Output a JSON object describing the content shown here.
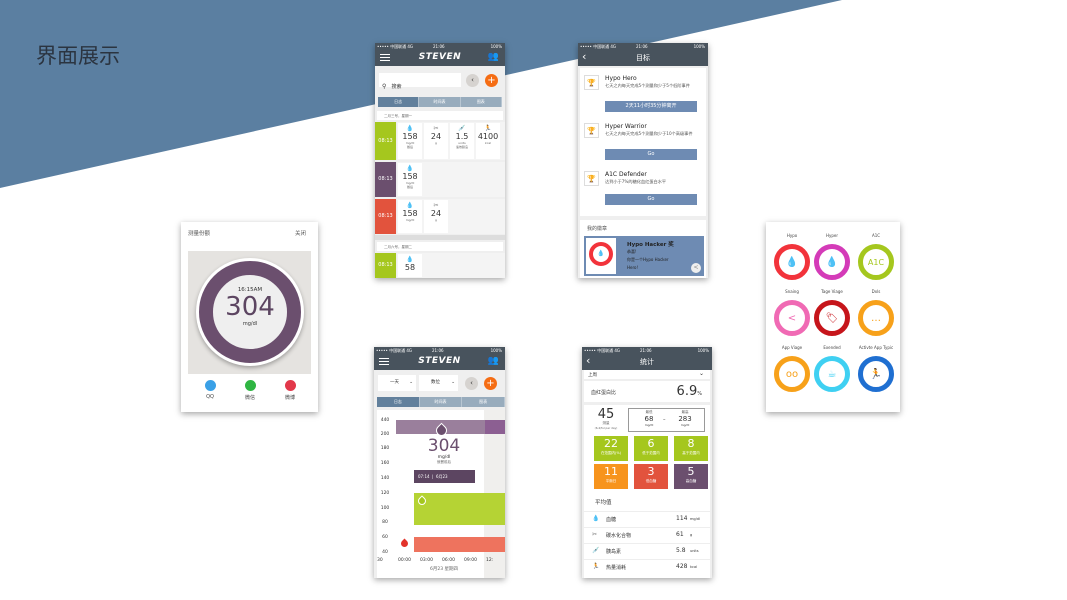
{
  "slide": {
    "title": "界面展示",
    "colors": {
      "background_triangle": "#5b7fa1",
      "dark_bar": "#48535d",
      "green": "#a5c71e",
      "purple": "#6b4f6e",
      "red": "#e2533d",
      "orange": "#f7941d",
      "blue_button": "#6e8bb3"
    }
  },
  "status": {
    "carrier": "••••• 中国联通 4G",
    "time": "21:06",
    "battery": "100%"
  },
  "share": {
    "title": "测量份额",
    "close": "关闭",
    "time": "16:15AM",
    "value": "304",
    "unit": "mg/dl",
    "targets": [
      {
        "label": "QQ",
        "color": "#3aa0e6"
      },
      {
        "label": "微信",
        "color": "#2fb542"
      },
      {
        "label": "微博",
        "color": "#e2384a"
      }
    ]
  },
  "log": {
    "header": "STEVEN",
    "search_placeholder": "搜索",
    "tabs": [
      "日志",
      "时间表",
      "图表"
    ],
    "day1": "二月三号，星期一",
    "day2": "二月六号，星期二",
    "rows": [
      {
        "time": "08:13",
        "color": "#a5c71e",
        "cells": [
          {
            "icon": "drop-icon",
            "value": "158",
            "unit": "mg/dl",
            "note": "餐后"
          },
          {
            "icon": "fork-knife-icon",
            "value": "24",
            "unit": "g"
          },
          {
            "icon": "syringe-icon",
            "value": "1.5",
            "unit": "units",
            "note": "速效胰岛"
          },
          {
            "icon": "runner-icon",
            "value": "4100",
            "unit": "kcal"
          }
        ]
      },
      {
        "time": "08:13",
        "color": "#6b4f6e",
        "cells": [
          {
            "icon": "drop-icon",
            "value": "158",
            "unit": "mg/dl",
            "note": "餐后"
          }
        ]
      },
      {
        "time": "08:13",
        "color": "#e2533d",
        "cells": [
          {
            "icon": "drop-icon",
            "value": "158",
            "unit": "mg/dl"
          },
          {
            "icon": "fork-knife-icon",
            "value": "24",
            "unit": "g"
          }
        ]
      },
      {
        "time": "08:13",
        "color": "#a5c71e",
        "cells": [
          {
            "icon": "drop-icon",
            "value": "58"
          }
        ]
      }
    ]
  },
  "goals": {
    "header": "目标",
    "items": [
      {
        "title": "Hypo Hero",
        "desc": "七天之内每天完成5个测量和少于5个低阶事件",
        "button": "2天11小时35分钟离开"
      },
      {
        "title": "Hyper  Warrior",
        "desc": "七天之内每天完成5个测量和少于10个高级事件",
        "button": "Go"
      },
      {
        "title": "A1C Defender",
        "desc": "达到小于7%的糖化血红蛋白水平",
        "button": "Go"
      }
    ],
    "badges_label": "我的徽章",
    "badge": {
      "title": "Hypo Hacker  奖",
      "line1": "恭喜!",
      "line2": "你是一个Hypo Hacker",
      "line3": "Hero!"
    }
  },
  "chart": {
    "header": "STEVEN",
    "dropdown1": "一天",
    "dropdown2": "数位",
    "tabs": [
      "日志",
      "时间表",
      "图表"
    ],
    "yticks": [
      "440",
      "200",
      "180",
      "160",
      "140",
      "120",
      "100",
      "80",
      "60",
      "40"
    ],
    "xticks": [
      "30",
      "00:00",
      "03:00",
      "06:00",
      "09:00",
      "12:"
    ],
    "reading": "304",
    "reading_unit": "mg/dl",
    "reading_note": "就餐前后",
    "tag_time": "07:14",
    "tag_date": "6月23",
    "date": "6月23 星期四"
  },
  "stats": {
    "header": "统计",
    "period": "上周",
    "hba1c_label": "血红蛋白比",
    "hba1c_value": "6.9",
    "hba1c_unit": "%",
    "count": "45",
    "count_label": "测量",
    "count_sub": "(6.4/ful per day)",
    "low_label": "最低",
    "low": "68",
    "high_label": "最高",
    "high": "283",
    "mg": "mg/dl",
    "tiles": [
      {
        "n": "22",
        "l": "在范围内(%)",
        "c": "#a5c71e"
      },
      {
        "n": "6",
        "l": "低于范围内",
        "c": "#a5c71e"
      },
      {
        "n": "8",
        "l": "高于范围内",
        "c": "#a5c71e"
      },
      {
        "n": "11",
        "l": "平衡日",
        "c": "#f7941d"
      },
      {
        "n": "3",
        "l": "低血糖",
        "c": "#e2533d"
      },
      {
        "n": "5",
        "l": "高血糖",
        "c": "#6b4f6e"
      }
    ],
    "avg_label": "平均值",
    "avgs": [
      {
        "icon": "drop-icon",
        "label": "血糖",
        "value": "114",
        "unit": "mg/dl"
      },
      {
        "icon": "fork-knife-icon",
        "label": "碳水化合物",
        "value": "61",
        "unit": "g"
      },
      {
        "icon": "syringe-icon",
        "label": "胰岛素",
        "value": "5.8",
        "unit": "units"
      },
      {
        "icon": "runner-icon",
        "label": "热量消耗",
        "value": "428",
        "unit": "kcal"
      }
    ]
  },
  "badges": [
    {
      "label": "Hypo",
      "color": "#f2333b",
      "glyph": "💧",
      "icon": "drop-down-icon"
    },
    {
      "label": "Hyper",
      "color": "#d43bb8",
      "glyph": "💧",
      "icon": "drop-up-icon"
    },
    {
      "label": "A1C",
      "color": "#a5c71e",
      "glyph": "A1C",
      "icon": "a1c-icon"
    },
    {
      "label": "Snaing",
      "color": "#f06ab4",
      "glyph": "<",
      "icon": "share-icon"
    },
    {
      "label": "Tage Viage",
      "color": "#c6151b",
      "glyph": "🏷",
      "icon": "tag-icon"
    },
    {
      "label": "Dxls",
      "color": "#f7a11a",
      "glyph": "…",
      "icon": "chat-icon"
    },
    {
      "label": "App Viage",
      "color": "#f7a11a",
      "glyph": "oo",
      "icon": "glasses-icon"
    },
    {
      "label": "Exended",
      "color": "#3fd0f2",
      "glyph": "☕",
      "icon": "cups-icon"
    },
    {
      "label": "Activte App Typic",
      "color": "#1f6fd1",
      "glyph": "🏃",
      "icon": "runner-icon"
    }
  ]
}
